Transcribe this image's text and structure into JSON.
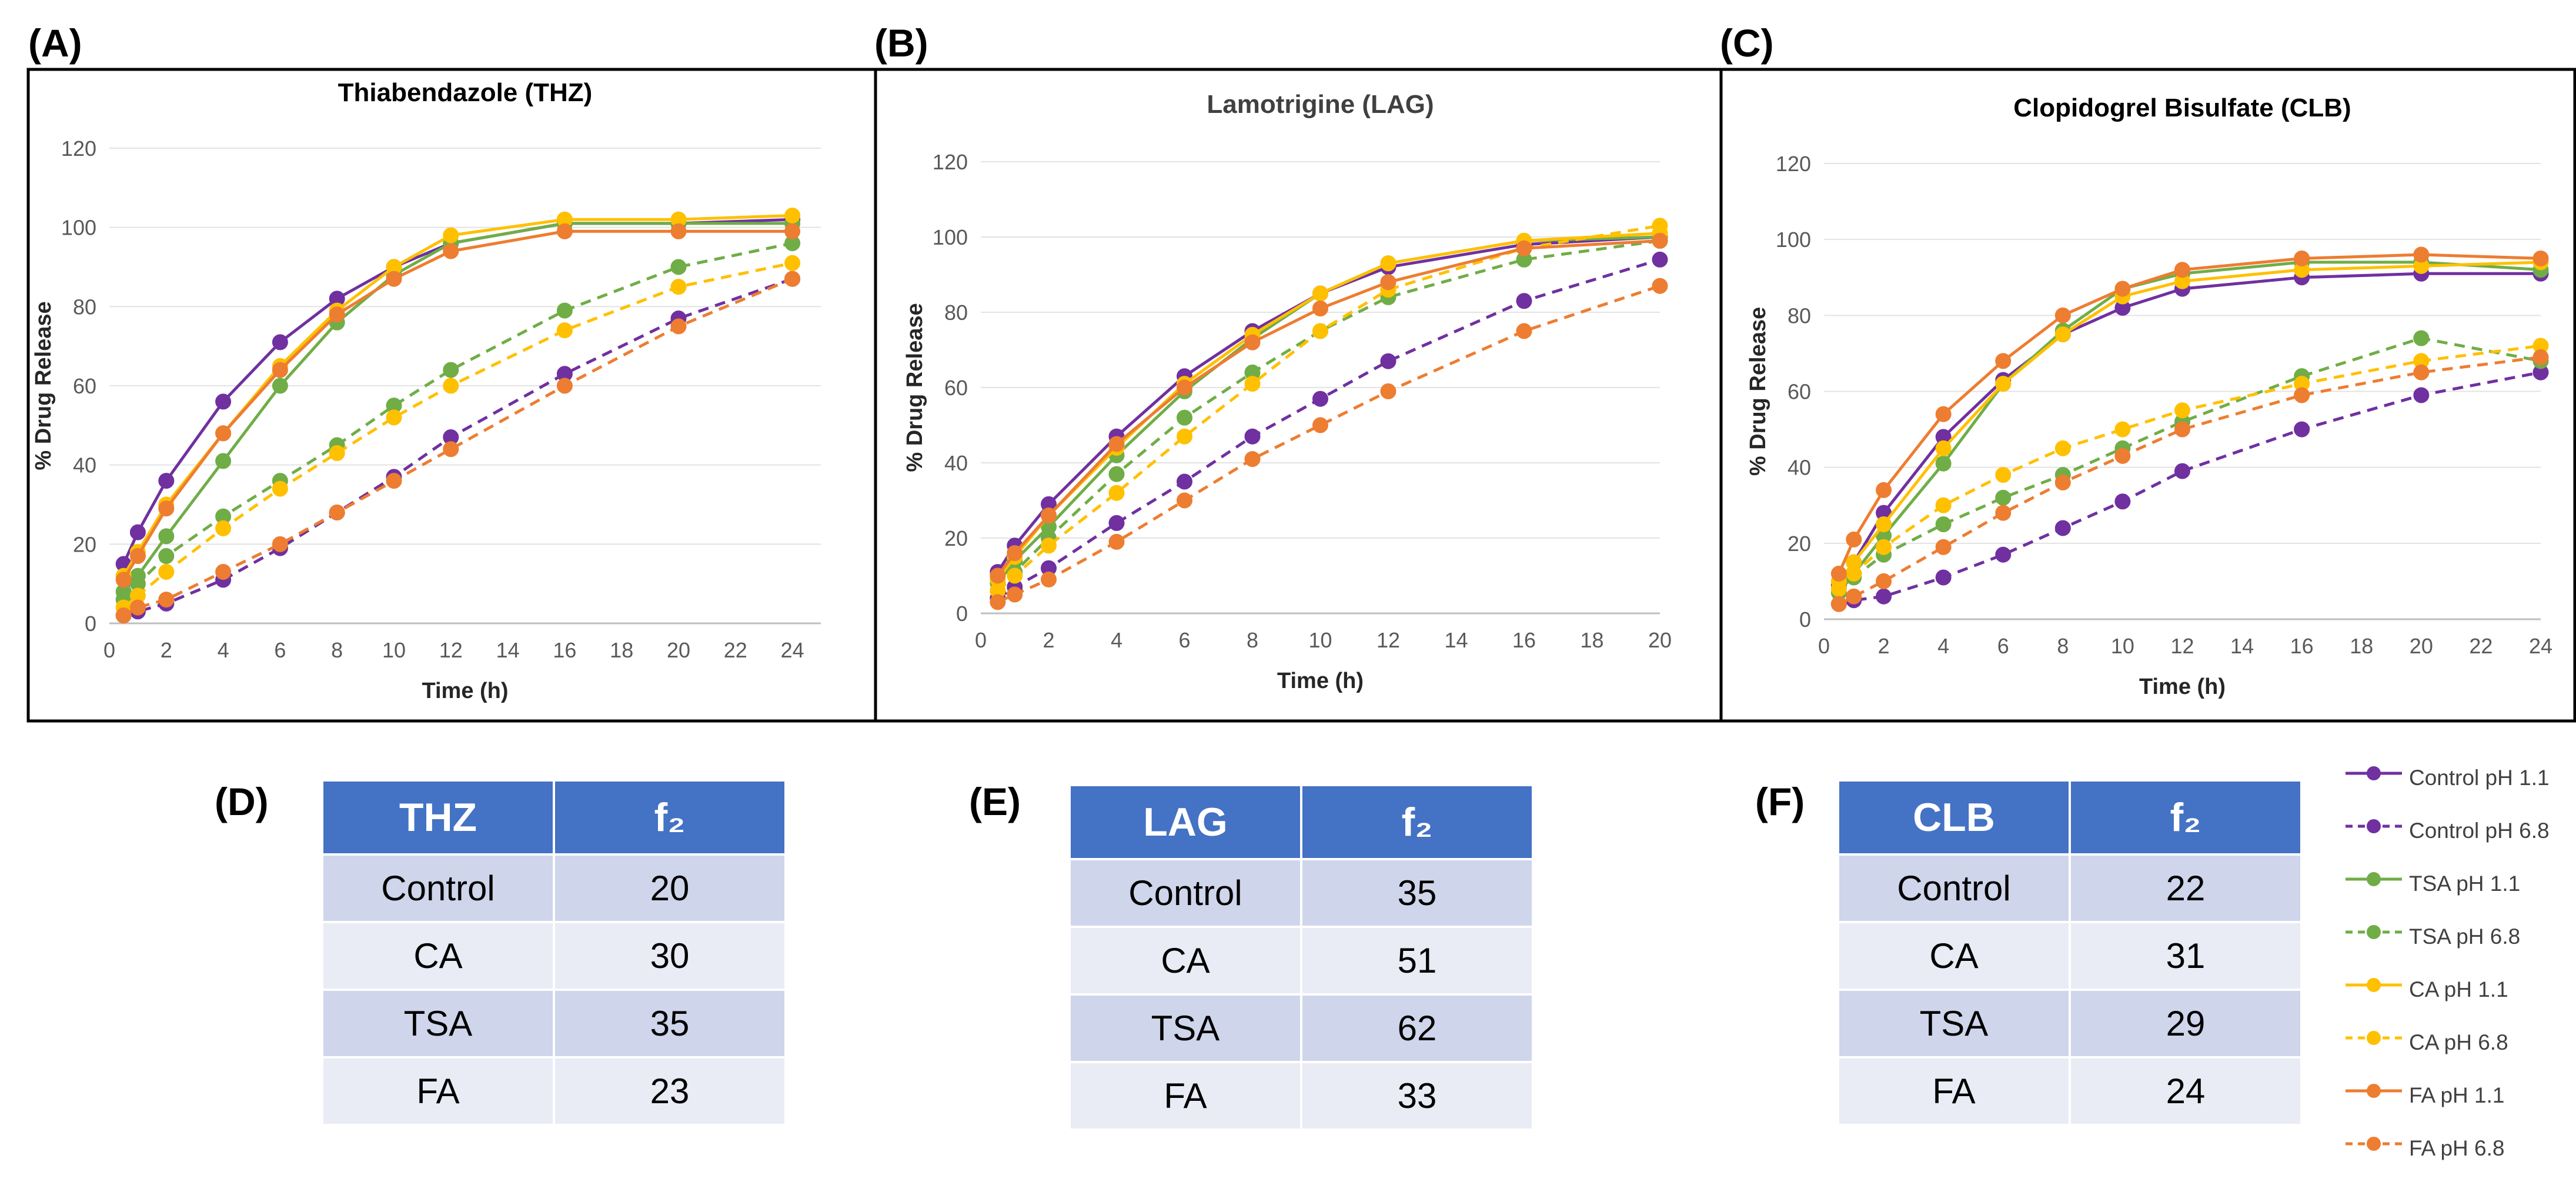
{
  "colors": {
    "purple": "#7030a0",
    "green": "#70ad47",
    "yellow": "#ffc000",
    "orange": "#ed7d31",
    "table_header": "#4472c4",
    "table_row_dark": "#cfd5ea",
    "table_row_light": "#e9ebf5"
  },
  "panels": [
    {
      "letter": "(A)"
    },
    {
      "letter": "(B)"
    },
    {
      "letter": "(C)"
    },
    {
      "letter": "(D)"
    },
    {
      "letter": "(E)"
    },
    {
      "letter": "(F)"
    }
  ],
  "chart_data": [
    {
      "type": "line",
      "title": "Thiabendazole (THZ)",
      "xlabel": "Time (h)",
      "ylabel": "% Drug Release",
      "xlim": [
        0,
        25
      ],
      "ylim": [
        0,
        120
      ],
      "xticks": [
        0,
        2,
        4,
        6,
        8,
        10,
        12,
        14,
        16,
        18,
        20,
        22,
        24
      ],
      "yticks": [
        0,
        20,
        40,
        60,
        80,
        100,
        120
      ],
      "grid": "horizontal",
      "series": [
        {
          "name": "Control pH 1.1",
          "color": "purple",
          "dashed": false,
          "x": [
            0.5,
            1,
            2,
            4,
            6,
            8,
            10,
            12,
            16,
            20,
            24
          ],
          "y": [
            15,
            23,
            36,
            56,
            71,
            82,
            90,
            96,
            101,
            101,
            102
          ]
        },
        {
          "name": "Control pH 6.8",
          "color": "purple",
          "dashed": true,
          "x": [
            0.5,
            1,
            2,
            4,
            6,
            8,
            10,
            12,
            16,
            20,
            24
          ],
          "y": [
            2,
            3,
            5,
            11,
            19,
            28,
            37,
            47,
            63,
            77,
            87
          ]
        },
        {
          "name": "TSA pH 1.1",
          "color": "green",
          "dashed": false,
          "x": [
            0.5,
            1,
            2,
            4,
            6,
            8,
            10,
            12,
            16,
            20,
            24
          ],
          "y": [
            8,
            12,
            22,
            41,
            60,
            76,
            88,
            96,
            101,
            101,
            101
          ]
        },
        {
          "name": "TSA pH 6.8",
          "color": "green",
          "dashed": true,
          "x": [
            0.5,
            1,
            2,
            4,
            6,
            8,
            10,
            12,
            16,
            20,
            24
          ],
          "y": [
            6,
            10,
            17,
            27,
            36,
            45,
            55,
            64,
            79,
            90,
            96
          ]
        },
        {
          "name": "CA pH 1.1",
          "color": "yellow",
          "dashed": false,
          "x": [
            0.5,
            1,
            2,
            4,
            6,
            8,
            10,
            12,
            16,
            20,
            24
          ],
          "y": [
            12,
            18,
            30,
            48,
            65,
            79,
            90,
            98,
            102,
            102,
            103
          ]
        },
        {
          "name": "CA pH 6.8",
          "color": "yellow",
          "dashed": true,
          "x": [
            0.5,
            1,
            2,
            4,
            6,
            8,
            10,
            12,
            16,
            20,
            24
          ],
          "y": [
            4,
            7,
            13,
            24,
            34,
            43,
            52,
            60,
            74,
            85,
            91
          ]
        },
        {
          "name": "FA pH 1.1",
          "color": "orange",
          "dashed": false,
          "x": [
            0.5,
            1,
            2,
            4,
            6,
            8,
            10,
            12,
            16,
            20,
            24
          ],
          "y": [
            11,
            17,
            29,
            48,
            64,
            78,
            87,
            94,
            99,
            99,
            99
          ]
        },
        {
          "name": "FA pH 6.8",
          "color": "orange",
          "dashed": true,
          "x": [
            0.5,
            1,
            2,
            4,
            6,
            8,
            10,
            12,
            16,
            20,
            24
          ],
          "y": [
            2,
            4,
            6,
            13,
            20,
            28,
            36,
            44,
            60,
            75,
            87
          ]
        }
      ]
    },
    {
      "type": "line",
      "title": "Lamotrigine (LAG)",
      "xlabel": "Time (h)",
      "ylabel": "% Drug Release",
      "xlim": [
        0,
        20
      ],
      "ylim": [
        0,
        120
      ],
      "xticks": [
        0,
        2,
        4,
        6,
        8,
        10,
        12,
        14,
        16,
        18,
        20
      ],
      "yticks": [
        0,
        20,
        40,
        60,
        80,
        100,
        120
      ],
      "grid": "horizontal",
      "series": [
        {
          "name": "Control pH 1.1",
          "color": "purple",
          "dashed": false,
          "x": [
            0.5,
            1,
            2,
            4,
            6,
            8,
            10,
            12,
            16,
            20
          ],
          "y": [
            11,
            18,
            29,
            47,
            63,
            75,
            85,
            92,
            98,
            100
          ]
        },
        {
          "name": "Control pH 6.8",
          "color": "purple",
          "dashed": true,
          "x": [
            0.5,
            1,
            2,
            4,
            6,
            8,
            10,
            12,
            16,
            20
          ],
          "y": [
            4,
            7,
            12,
            24,
            35,
            47,
            57,
            67,
            83,
            94
          ]
        },
        {
          "name": "TSA pH 1.1",
          "color": "green",
          "dashed": false,
          "x": [
            0.5,
            1,
            2,
            4,
            6,
            8,
            10,
            12,
            16,
            20
          ],
          "y": [
            8,
            14,
            23,
            42,
            59,
            73,
            85,
            93,
            99,
            100
          ]
        },
        {
          "name": "TSA pH 6.8",
          "color": "green",
          "dashed": true,
          "x": [
            0.5,
            1,
            2,
            4,
            6,
            8,
            10,
            12,
            16,
            20
          ],
          "y": [
            6,
            11,
            20,
            37,
            52,
            64,
            75,
            84,
            94,
            99
          ]
        },
        {
          "name": "CA pH 1.1",
          "color": "yellow",
          "dashed": false,
          "x": [
            0.5,
            1,
            2,
            4,
            6,
            8,
            10,
            12,
            16,
            20
          ],
          "y": [
            9,
            15,
            26,
            44,
            61,
            74,
            85,
            93,
            99,
            101
          ]
        },
        {
          "name": "CA pH 6.8",
          "color": "yellow",
          "dashed": true,
          "x": [
            0.5,
            1,
            2,
            4,
            6,
            8,
            10,
            12,
            16,
            20
          ],
          "y": [
            6,
            10,
            18,
            32,
            47,
            61,
            75,
            86,
            97,
            103
          ]
        },
        {
          "name": "FA pH 1.1",
          "color": "orange",
          "dashed": false,
          "x": [
            0.5,
            1,
            2,
            4,
            6,
            8,
            10,
            12,
            16,
            20
          ],
          "y": [
            10,
            16,
            26,
            45,
            60,
            72,
            81,
            88,
            97,
            99
          ]
        },
        {
          "name": "FA pH 6.8",
          "color": "orange",
          "dashed": true,
          "x": [
            0.5,
            1,
            2,
            4,
            6,
            8,
            10,
            12,
            16,
            20
          ],
          "y": [
            3,
            5,
            9,
            19,
            30,
            41,
            50,
            59,
            75,
            87
          ]
        }
      ]
    },
    {
      "type": "line",
      "title": "Clopidogrel Bisulfate (CLB)",
      "xlabel": "Time (h)",
      "ylabel": "% Drug Release",
      "xlim": [
        0,
        24
      ],
      "ylim": [
        0,
        120
      ],
      "xticks": [
        0,
        2,
        4,
        6,
        8,
        10,
        12,
        14,
        16,
        18,
        20,
        22,
        24
      ],
      "yticks": [
        0,
        20,
        40,
        60,
        80,
        100,
        120
      ],
      "grid": "horizontal",
      "series": [
        {
          "name": "Control pH 1.1",
          "color": "purple",
          "dashed": false,
          "x": [
            0.5,
            1,
            2,
            4,
            6,
            8,
            10,
            12,
            16,
            20,
            24
          ],
          "y": [
            9,
            15,
            28,
            48,
            63,
            75,
            82,
            87,
            90,
            91,
            91
          ]
        },
        {
          "name": "Control pH 6.8",
          "color": "purple",
          "dashed": true,
          "x": [
            0.5,
            1,
            2,
            4,
            6,
            8,
            10,
            12,
            16,
            20,
            24
          ],
          "y": [
            4,
            5,
            6,
            11,
            17,
            24,
            31,
            39,
            50,
            59,
            65
          ]
        },
        {
          "name": "TSA pH 1.1",
          "color": "green",
          "dashed": false,
          "x": [
            0.5,
            1,
            2,
            4,
            6,
            8,
            10,
            12,
            16,
            20,
            24
          ],
          "y": [
            7,
            12,
            22,
            41,
            62,
            76,
            87,
            91,
            94,
            94,
            92
          ]
        },
        {
          "name": "TSA pH 6.8",
          "color": "green",
          "dashed": true,
          "x": [
            0.5,
            1,
            2,
            4,
            6,
            8,
            10,
            12,
            16,
            20,
            24
          ],
          "y": [
            8,
            11,
            17,
            25,
            32,
            38,
            45,
            52,
            64,
            74,
            68
          ]
        },
        {
          "name": "CA pH 1.1",
          "color": "yellow",
          "dashed": false,
          "x": [
            0.5,
            1,
            2,
            4,
            6,
            8,
            10,
            12,
            16,
            20,
            24
          ],
          "y": [
            10,
            15,
            25,
            45,
            62,
            75,
            85,
            89,
            92,
            93,
            94
          ]
        },
        {
          "name": "CA pH 6.8",
          "color": "yellow",
          "dashed": true,
          "x": [
            0.5,
            1,
            2,
            4,
            6,
            8,
            10,
            12,
            16,
            20,
            24
          ],
          "y": [
            8,
            12,
            19,
            30,
            38,
            45,
            50,
            55,
            62,
            68,
            72
          ]
        },
        {
          "name": "FA pH 1.1",
          "color": "orange",
          "dashed": false,
          "x": [
            0.5,
            1,
            2,
            4,
            6,
            8,
            10,
            12,
            16,
            20,
            24
          ],
          "y": [
            12,
            21,
            34,
            54,
            68,
            80,
            87,
            92,
            95,
            96,
            95
          ]
        },
        {
          "name": "FA pH 6.8",
          "color": "orange",
          "dashed": true,
          "x": [
            0.5,
            1,
            2,
            4,
            6,
            8,
            10,
            12,
            16,
            20,
            24
          ],
          "y": [
            4,
            6,
            10,
            19,
            28,
            36,
            43,
            50,
            59,
            65,
            69
          ]
        }
      ]
    },
    {
      "type": "table",
      "columns": [
        "THZ",
        "f₂"
      ],
      "rows": [
        [
          "Control",
          "20"
        ],
        [
          "CA",
          "30"
        ],
        [
          "TSA",
          "35"
        ],
        [
          "FA",
          "23"
        ]
      ]
    },
    {
      "type": "table",
      "columns": [
        "LAG",
        "f₂"
      ],
      "rows": [
        [
          "Control",
          "35"
        ],
        [
          "CA",
          "51"
        ],
        [
          "TSA",
          "62"
        ],
        [
          "FA",
          "33"
        ]
      ]
    },
    {
      "type": "table",
      "columns": [
        "CLB",
        "f₂"
      ],
      "rows": [
        [
          "Control",
          "22"
        ],
        [
          "CA",
          "31"
        ],
        [
          "TSA",
          "29"
        ],
        [
          "FA",
          "24"
        ]
      ]
    }
  ],
  "legend": [
    {
      "name": "Control pH 1.1",
      "color": "purple",
      "dashed": false
    },
    {
      "name": "Control pH 6.8",
      "color": "purple",
      "dashed": true
    },
    {
      "name": "TSA pH 1.1",
      "color": "green",
      "dashed": false
    },
    {
      "name": "TSA pH 6.8",
      "color": "green",
      "dashed": true
    },
    {
      "name": "CA pH 1.1",
      "color": "yellow",
      "dashed": false
    },
    {
      "name": "CA pH 6.8",
      "color": "yellow",
      "dashed": true
    },
    {
      "name": "FA pH 1.1",
      "color": "orange",
      "dashed": false
    },
    {
      "name": "FA pH 6.8",
      "color": "orange",
      "dashed": true
    }
  ]
}
